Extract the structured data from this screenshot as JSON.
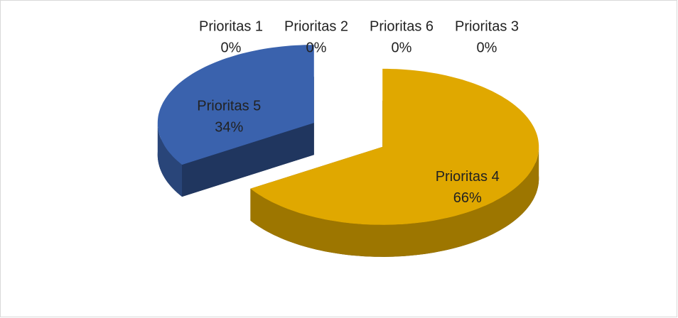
{
  "chart_data": {
    "type": "pie3d",
    "categories": [
      "Prioritas 4",
      "Prioritas 5",
      "Prioritas 1",
      "Prioritas 2",
      "Prioritas 6",
      "Prioritas 3"
    ],
    "values": [
      66,
      34,
      0,
      0,
      0,
      0
    ],
    "value_labels": [
      "66%",
      "34%",
      "0%",
      "0%",
      "0%",
      "0%"
    ],
    "colors": [
      "#e0a800",
      "#3a62ad",
      "#4472c4",
      "#ed7d31",
      "#70ad47",
      "#a5a5a5"
    ]
  }
}
